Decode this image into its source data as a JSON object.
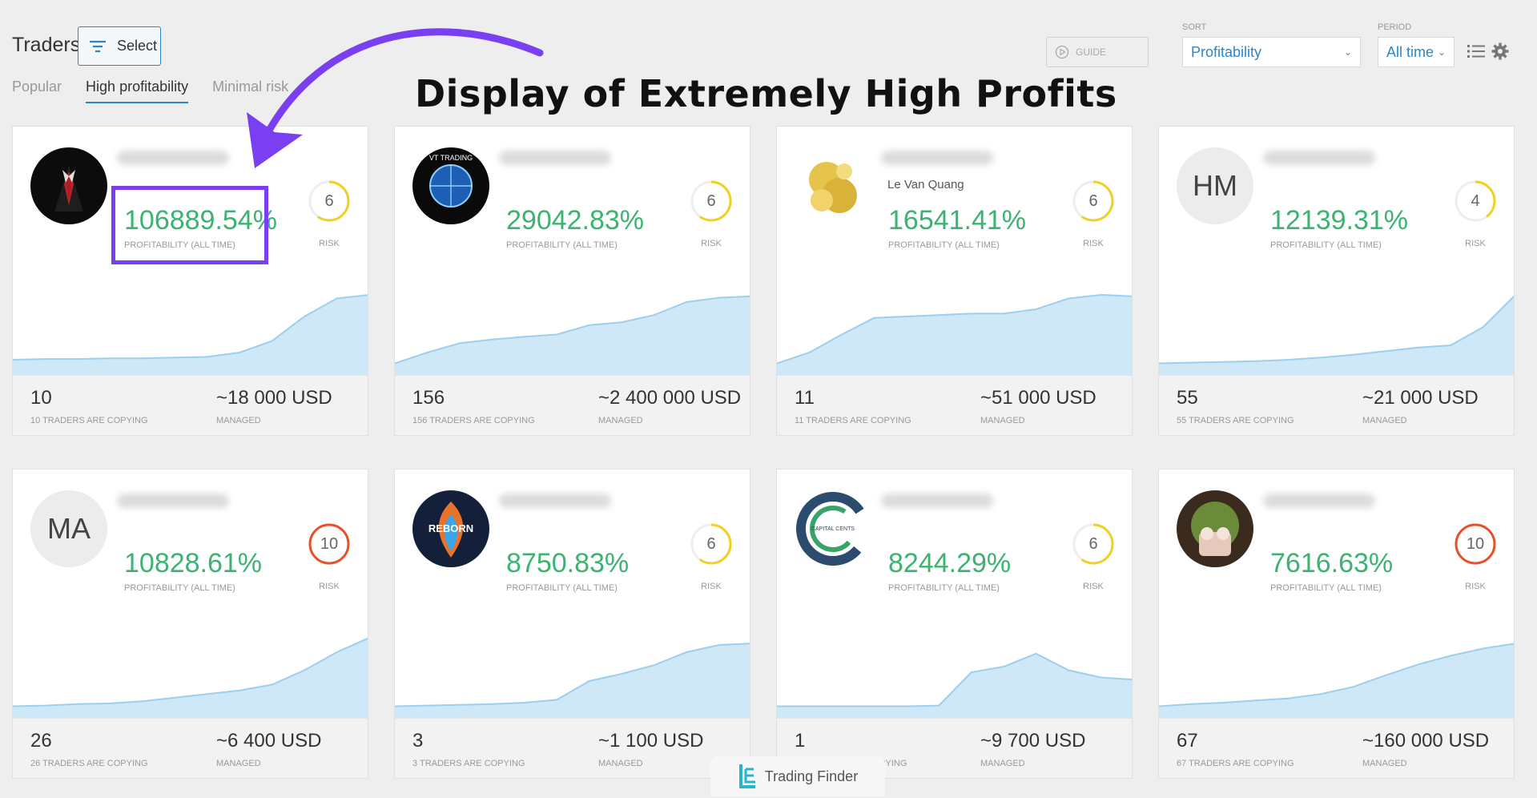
{
  "header": {
    "title": "Traders",
    "select_label": "Select",
    "tabs": [
      {
        "label": "Popular",
        "active": false
      },
      {
        "label": "High profitability",
        "active": true
      },
      {
        "label": "Minimal risk",
        "active": false
      }
    ],
    "guide_label": "GUIDE",
    "sort_label": "SORT",
    "sort_value": "Profitability",
    "period_label": "PERIOD",
    "period_value": "All time"
  },
  "annotation": {
    "heading": "Display of Extremely High Profits",
    "arrow_color": "#7b3ff2"
  },
  "colors": {
    "accent": "#2a86c9",
    "profit": "#3cb371",
    "risk_high": "#e8502a",
    "risk_mid": "#f0d020"
  },
  "cards": [
    {
      "name": "",
      "profit": "106889.54%",
      "profit_label": "PROFITABILITY (ALL TIME)",
      "risk": "6",
      "risk_label": "RISK",
      "risk_level": 0.6,
      "risk_color": "#f0d020",
      "copying": "10",
      "copying_label": "10 TRADERS ARE COPYING",
      "managed": "~18 000 USD",
      "managed_label": "MANAGED",
      "avatar": "suit-avatar",
      "curve": [
        0.1,
        0.11,
        0.11,
        0.12,
        0.12,
        0.13,
        0.14,
        0.2,
        0.36,
        0.7,
        0.95,
        1.0
      ]
    },
    {
      "name": "",
      "profit": "29042.83%",
      "profit_label": "PROFITABILITY (ALL TIME)",
      "risk": "6",
      "risk_label": "RISK",
      "risk_level": 0.6,
      "risk_color": "#f0d020",
      "copying": "156",
      "copying_label": "156 TRADERS ARE COPYING",
      "managed": "~2 400 000 USD",
      "managed_label": "MANAGED",
      "avatar": "vt-trading-avatar",
      "avatar_text": "VT TRADING",
      "curve": [
        0.05,
        0.2,
        0.33,
        0.38,
        0.42,
        0.45,
        0.58,
        0.62,
        0.72,
        0.9,
        0.96,
        0.98
      ]
    },
    {
      "name": "Le Van Quang",
      "profit": "16541.41%",
      "profit_label": "PROFITABILITY (ALL TIME)",
      "risk": "6",
      "risk_label": "RISK",
      "risk_level": 0.6,
      "risk_color": "#f0d020",
      "copying": "11",
      "copying_label": "11 TRADERS ARE COPYING",
      "managed": "~51 000 USD",
      "managed_label": "MANAGED",
      "avatar": "gold-coins-avatar",
      "curve": [
        0.05,
        0.2,
        0.45,
        0.68,
        0.7,
        0.72,
        0.74,
        0.74,
        0.8,
        0.95,
        1.0,
        0.98
      ]
    },
    {
      "name": "",
      "profit": "12139.31%",
      "profit_label": "PROFITABILITY (ALL TIME)",
      "risk": "4",
      "risk_label": "RISK",
      "risk_level": 0.4,
      "risk_color": "#f0d020",
      "copying": "55",
      "copying_label": "55 TRADERS ARE COPYING",
      "managed": "~21 000 USD",
      "managed_label": "MANAGED",
      "avatar": "initials-avatar",
      "initials": "HM",
      "curve": [
        0.05,
        0.06,
        0.07,
        0.08,
        0.1,
        0.13,
        0.17,
        0.22,
        0.27,
        0.3,
        0.55,
        1.0
      ]
    },
    {
      "name": "",
      "profit": "10828.61%",
      "profit_label": "PROFITABILITY (ALL TIME)",
      "risk": "10",
      "risk_label": "RISK",
      "risk_level": 1.0,
      "risk_color": "#e8502a",
      "copying": "26",
      "copying_label": "26 TRADERS ARE COPYING",
      "managed": "~6 400 USD",
      "managed_label": "MANAGED",
      "avatar": "initials-avatar",
      "initials": "MA",
      "curve": [
        0.05,
        0.06,
        0.08,
        0.09,
        0.12,
        0.17,
        0.22,
        0.27,
        0.35,
        0.55,
        0.8,
        1.0
      ]
    },
    {
      "name": "",
      "profit": "8750.83%",
      "profit_label": "PROFITABILITY (ALL TIME)",
      "risk": "6",
      "risk_label": "RISK",
      "risk_level": 0.6,
      "risk_color": "#f0d020",
      "copying": "3",
      "copying_label": "3 TRADERS ARE COPYING",
      "managed": "~1 100 USD",
      "managed_label": "MANAGED",
      "avatar": "reborn-avatar",
      "avatar_text": "REBORN",
      "curve": [
        0.05,
        0.06,
        0.07,
        0.08,
        0.1,
        0.14,
        0.4,
        0.5,
        0.62,
        0.8,
        0.9,
        0.92
      ]
    },
    {
      "name": "",
      "profit": "8244.29%",
      "profit_label": "PROFITABILITY (ALL TIME)",
      "risk": "6",
      "risk_label": "RISK",
      "risk_level": 0.6,
      "risk_color": "#f0d020",
      "copying": "1",
      "copying_label": "1 TRADERS ARE COPYING",
      "managed": "~9 700 USD",
      "managed_label": "MANAGED",
      "avatar": "capital-cents-avatar",
      "avatar_text": "CAPITAL CENTS",
      "curve": [
        0.05,
        0.05,
        0.05,
        0.05,
        0.05,
        0.06,
        0.52,
        0.6,
        0.78,
        0.55,
        0.45,
        0.42
      ]
    },
    {
      "name": "",
      "profit": "7616.63%",
      "profit_label": "PROFITABILITY (ALL TIME)",
      "risk": "10",
      "risk_label": "RISK",
      "risk_level": 1.0,
      "risk_color": "#e8502a",
      "copying": "67",
      "copying_label": "67 TRADERS ARE COPYING",
      "managed": "~160 000 USD",
      "managed_label": "MANAGED",
      "avatar": "toy-photo-avatar",
      "curve": [
        0.05,
        0.08,
        0.1,
        0.13,
        0.16,
        0.22,
        0.32,
        0.48,
        0.63,
        0.75,
        0.85,
        0.92
      ]
    }
  ],
  "watermark": {
    "text": "Trading Finder"
  }
}
